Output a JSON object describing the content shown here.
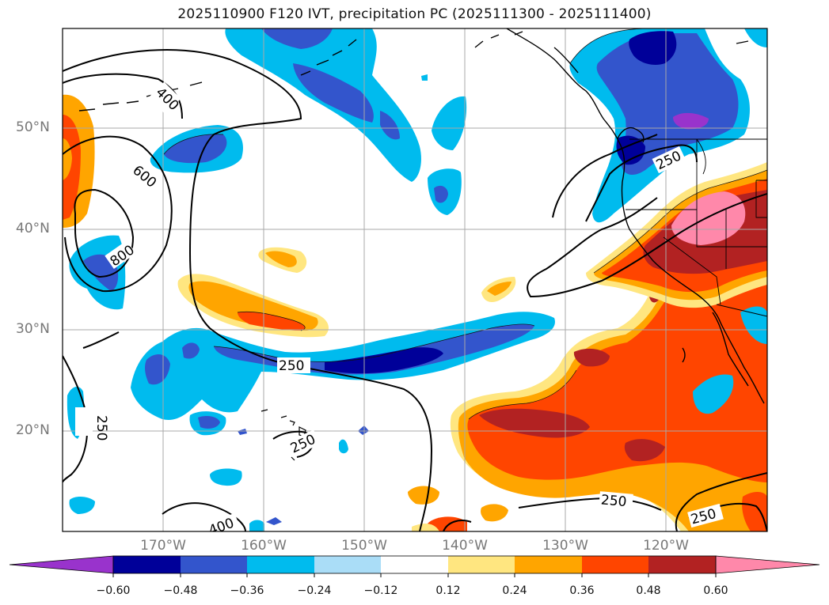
{
  "title": "2025110900 F120 IVT, precipitation PC (2025111300 - 2025111400)",
  "lat_labels": [
    "50°N",
    "40°N",
    "30°N",
    "20°N"
  ],
  "lon_labels": [
    "170°W",
    "160°W",
    "150°W",
    "140°W",
    "130°W",
    "120°W"
  ],
  "contour_labels": [
    "400",
    "600",
    "800",
    "250",
    "250",
    "250",
    "250",
    "250",
    "250",
    "400"
  ],
  "colorbar": {
    "ticks": [
      "−0.60",
      "−0.48",
      "−0.36",
      "−0.24",
      "−0.12",
      "0.12",
      "0.24",
      "0.36",
      "0.48",
      "0.60"
    ],
    "colors": [
      "#9933cc",
      "#000099",
      "#3355cc",
      "#00bbee",
      "#aaddf7",
      "#ffffff",
      "#ffe680",
      "#ffa500",
      "#ff4500",
      "#b22222",
      "#ff88aa"
    ]
  }
}
